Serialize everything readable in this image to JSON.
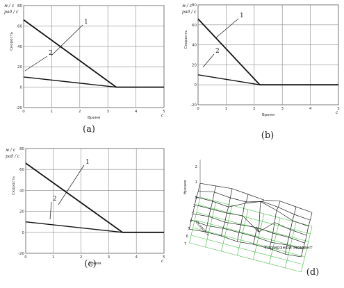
{
  "chart_data": [
    {
      "type": "line",
      "panel_label": "(a)",
      "ylabel": "Скорость",
      "xlabel": "Время",
      "y_unit_top": "м / с",
      "y_unit_bottom": "рад / с",
      "x_unit": "с",
      "xlim": [
        0,
        5
      ],
      "ylim": [
        -20,
        80
      ],
      "grid": true,
      "x_ticks": [
        "0",
        "1",
        "2",
        "3",
        "4",
        "5"
      ],
      "y_ticks": [
        "-20",
        "0",
        "20",
        "40",
        "60",
        "80"
      ],
      "series": [
        {
          "name": "1",
          "points": [
            [
              0,
              66
            ],
            [
              3.3,
              0
            ],
            [
              5,
              0
            ]
          ]
        },
        {
          "name": "2",
          "points": [
            [
              0,
              10
            ],
            [
              3.3,
              0
            ],
            [
              5,
              0
            ]
          ]
        }
      ]
    },
    {
      "type": "line",
      "panel_label": "(b)",
      "ylabel": "Скорость",
      "xlabel": "Время",
      "y_unit_top": "м / с",
      "y_unit_bottom": "рад / с",
      "x_unit": "с",
      "xlim": [
        0,
        5
      ],
      "ylim": [
        -20,
        80
      ],
      "grid": true,
      "x_ticks": [
        "0",
        "1",
        "2",
        "3",
        "4",
        "5"
      ],
      "y_ticks": [
        "-20",
        "0",
        "20",
        "40",
        "60",
        "80"
      ],
      "series": [
        {
          "name": "1",
          "points": [
            [
              0,
              66
            ],
            [
              2.2,
              0
            ],
            [
              5,
              0
            ]
          ]
        },
        {
          "name": "2",
          "points": [
            [
              0,
              10
            ],
            [
              2.2,
              0
            ],
            [
              5,
              0
            ]
          ]
        }
      ]
    },
    {
      "type": "line",
      "panel_label": "(c)",
      "ylabel": "Скорость",
      "xlabel": "Время",
      "y_unit_top": "м / с",
      "y_unit_bottom": "рад / с",
      "x_unit": "с",
      "xlim": [
        0,
        5
      ],
      "ylim": [
        -20,
        80
      ],
      "grid": true,
      "x_ticks": [
        "0",
        "1",
        "2",
        "3",
        "4",
        "5"
      ],
      "y_ticks": [
        "-20",
        "0",
        "20",
        "40",
        "60",
        "80"
      ],
      "series": [
        {
          "name": "1",
          "points": [
            [
              0,
              66
            ],
            [
              3.5,
              0
            ],
            [
              5,
              0
            ]
          ]
        },
        {
          "name": "2",
          "points": [
            [
              0,
              10
            ],
            [
              3.5,
              0
            ],
            [
              5,
              0
            ]
          ]
        }
      ]
    },
    {
      "type": "surface",
      "panel_label": "(d)",
      "zlabel": "Нрезия",
      "xlabel": "Тормозной момент",
      "ylabel": "Скорость",
      "z_ticks": [
        "0",
        "1",
        "2"
      ],
      "rows_label_ticks": [
        "1",
        "2",
        "3",
        "4",
        "5",
        "6",
        "7"
      ],
      "z_values": [
        [
          0.9,
          1.0,
          1.1,
          1.0,
          0.9,
          1.1,
          1.0,
          0.9
        ],
        [
          0.9,
          1.1,
          1.0,
          1.0,
          1.3,
          1.2,
          1.0,
          0.9
        ],
        [
          1.0,
          1.0,
          0.9,
          1.4,
          1.8,
          1.5,
          1.1,
          1.0
        ],
        [
          1.0,
          1.0,
          1.0,
          1.1,
          0.3,
          1.2,
          1.0,
          0.9
        ],
        [
          0.9,
          1.0,
          0.9,
          1.0,
          1.1,
          1.0,
          1.0,
          0.9
        ],
        [
          1.0,
          0.9,
          1.0,
          1.0,
          1.0,
          0.9,
          1.0,
          1.0
        ],
        [
          0.9,
          1.0,
          1.0,
          0.9,
          1.0,
          1.0,
          0.9,
          1.0
        ]
      ]
    }
  ]
}
